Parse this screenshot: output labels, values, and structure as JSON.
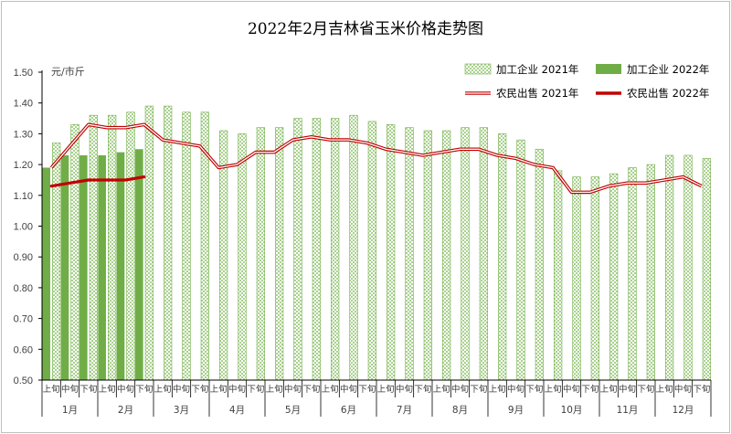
{
  "chart_data": {
    "type": "bar",
    "title": "2022年2月吉林省玉米价格走势图",
    "unit_label": "元/市斤",
    "ylim": [
      0.5,
      1.5
    ],
    "yticks": [
      "0.50",
      "0.60",
      "0.70",
      "0.80",
      "0.90",
      "1.00",
      "1.10",
      "1.20",
      "1.30",
      "1.40",
      "1.50"
    ],
    "period_labels": [
      "上旬",
      "中旬",
      "下旬"
    ],
    "months": [
      "1月",
      "2月",
      "3月",
      "4月",
      "5月",
      "6月",
      "7月",
      "8月",
      "9月",
      "10月",
      "11月",
      "12月"
    ],
    "series": [
      {
        "name": "加工企业 2021年",
        "kind": "bar",
        "pattern": "hatched",
        "values": [
          1.27,
          1.33,
          1.36,
          1.36,
          1.37,
          1.39,
          1.39,
          1.37,
          1.37,
          1.31,
          1.3,
          1.32,
          1.32,
          1.35,
          1.35,
          1.35,
          1.36,
          1.34,
          1.33,
          1.32,
          1.31,
          1.31,
          1.32,
          1.32,
          1.3,
          1.28,
          1.25,
          1.18,
          1.16,
          1.16,
          1.17,
          1.19,
          1.2,
          1.23,
          1.23,
          1.22
        ]
      },
      {
        "name": "加工企业 2022年",
        "kind": "bar",
        "pattern": "solid",
        "values": [
          1.19,
          1.23,
          1.23,
          1.23,
          1.24,
          1.25
        ]
      },
      {
        "name": "农民出售 2021年",
        "kind": "line",
        "style": "double",
        "values": [
          1.19,
          1.26,
          1.33,
          1.32,
          1.32,
          1.33,
          1.28,
          1.27,
          1.26,
          1.19,
          1.2,
          1.24,
          1.24,
          1.28,
          1.29,
          1.28,
          1.28,
          1.27,
          1.25,
          1.24,
          1.23,
          1.24,
          1.25,
          1.25,
          1.23,
          1.22,
          1.2,
          1.19,
          1.11,
          1.11,
          1.13,
          1.14,
          1.14,
          1.15,
          1.16,
          1.13
        ]
      },
      {
        "name": "农民出售 2022年",
        "kind": "line",
        "style": "solid",
        "values": [
          1.13,
          1.14,
          1.15,
          1.15,
          1.15,
          1.16
        ]
      }
    ],
    "colors": {
      "hatch_bar": "#a9d18e",
      "hatch_bar_border": "#70ad47",
      "solid_bar": "#70ad47",
      "line_2021": "#c00000",
      "line_2022": "#c00000",
      "axis": "#000000"
    }
  }
}
